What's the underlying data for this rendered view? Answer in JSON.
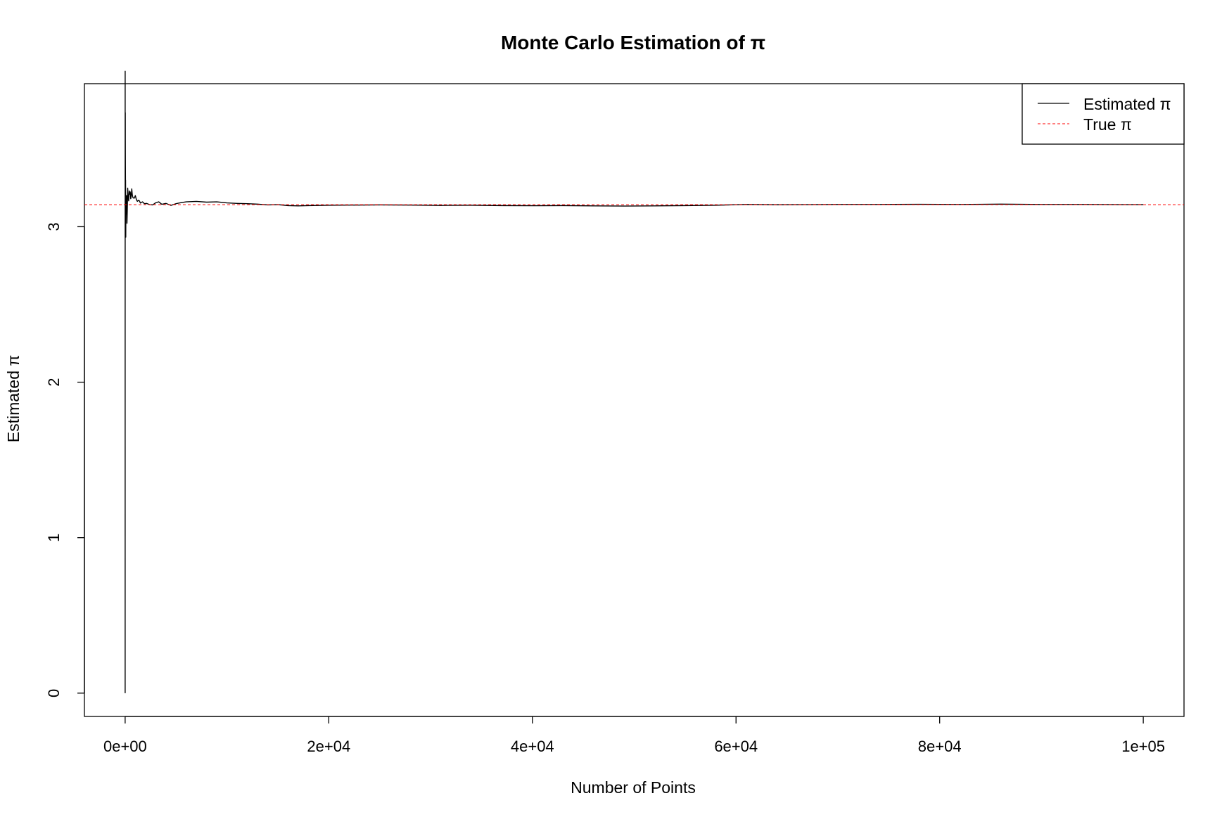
{
  "chart_data": {
    "type": "line",
    "title": "Monte Carlo Estimation of π",
    "xlabel": "Number of Points",
    "ylabel": "Estimated π",
    "xlim": [
      -4000,
      104000
    ],
    "ylim": [
      -0.15,
      3.92
    ],
    "x_ticks": [
      0,
      20000,
      40000,
      60000,
      80000,
      100000
    ],
    "x_tick_labels": [
      "0e+00",
      "2e+04",
      "4e+04",
      "6e+04",
      "8e+04",
      "1e+05"
    ],
    "y_ticks": [
      0,
      1,
      2,
      3
    ],
    "y_tick_labels": [
      "0",
      "1",
      "2",
      "3"
    ],
    "grid": false,
    "legend_position": "top-right",
    "series": [
      {
        "name": "Estimated π",
        "color": "#000000",
        "style": "solid",
        "x": [
          1,
          2,
          3,
          4,
          5,
          6,
          8,
          10,
          12,
          15,
          18,
          22,
          26,
          30,
          35,
          40,
          50,
          60,
          70,
          80,
          100,
          120,
          150,
          180,
          210,
          250,
          300,
          350,
          400,
          450,
          500,
          550,
          600,
          650,
          700,
          750,
          800,
          900,
          1000,
          1100,
          1200,
          1300,
          1400,
          1500,
          1700,
          1900,
          2100,
          2400,
          2700,
          3000,
          3300,
          3600,
          4000,
          4500,
          5000,
          5500,
          6000,
          7000,
          8000,
          9000,
          10000,
          11000,
          12000,
          13000,
          14000,
          15000,
          16000,
          17000,
          18000,
          20000,
          22000,
          25000,
          28000,
          31000,
          34000,
          37000,
          40000,
          43000,
          46000,
          49000,
          52000,
          55000,
          58000,
          61000,
          64000,
          67000,
          70000,
          74000,
          78000,
          82000,
          86000,
          90000,
          94000,
          98000,
          100000
        ],
        "y": [
          0,
          4,
          2.667,
          3,
          3.2,
          3.333,
          3.5,
          3.6,
          3.667,
          3.733,
          3.556,
          3.455,
          3.385,
          3.333,
          3.2,
          3.3,
          3.12,
          2.933,
          3.086,
          3.2,
          3.08,
          3.167,
          3.2,
          3.022,
          3.105,
          3.248,
          3.187,
          3.166,
          3.23,
          3.209,
          3.224,
          3.18,
          3.2,
          3.243,
          3.206,
          3.19,
          3.185,
          3.184,
          3.2,
          3.175,
          3.163,
          3.17,
          3.166,
          3.152,
          3.16,
          3.148,
          3.15,
          3.142,
          3.14,
          3.154,
          3.16,
          3.144,
          3.15,
          3.137,
          3.148,
          3.155,
          3.16,
          3.163,
          3.158,
          3.16,
          3.153,
          3.15,
          3.148,
          3.145,
          3.14,
          3.142,
          3.136,
          3.134,
          3.136,
          3.138,
          3.139,
          3.14,
          3.139,
          3.137,
          3.138,
          3.136,
          3.135,
          3.136,
          3.134,
          3.133,
          3.134,
          3.136,
          3.138,
          3.143,
          3.141,
          3.142,
          3.143,
          3.143,
          3.144,
          3.143,
          3.145,
          3.143,
          3.143,
          3.142,
          3.142
        ]
      },
      {
        "name": "True π",
        "color": "#ff0000",
        "style": "dashed",
        "value": 3.141593
      }
    ]
  }
}
